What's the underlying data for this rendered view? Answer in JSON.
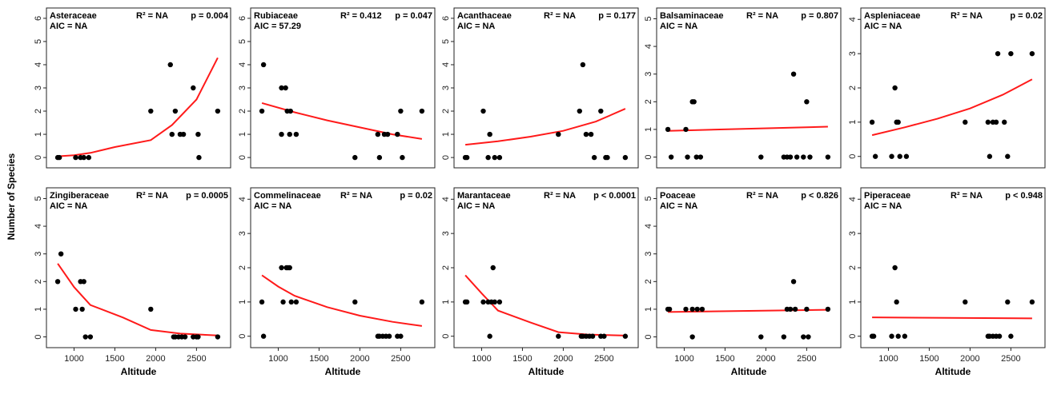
{
  "y_axis_label": "Number of Species",
  "chart_data": [
    {
      "type": "scatter",
      "family": "Asteraceae",
      "r2": "R² = NA",
      "p": "p = 0.004",
      "aic": "AIC = NA",
      "xlabel": "Altitude",
      "ylabel": "Number of Species",
      "xlim": [
        760,
        2820
      ],
      "ylim": [
        -0.1,
        6.1
      ],
      "yticks": [
        0,
        1,
        2,
        3,
        4,
        5,
        6
      ],
      "xticks": [],
      "points": [
        [
          800,
          0
        ],
        [
          820,
          0
        ],
        [
          1020,
          0
        ],
        [
          1080,
          0
        ],
        [
          1120,
          0
        ],
        [
          1180,
          0
        ],
        [
          1940,
          2
        ],
        [
          2180,
          4
        ],
        [
          2200,
          1
        ],
        [
          2240,
          2
        ],
        [
          2300,
          1
        ],
        [
          2340,
          1
        ],
        [
          2460,
          3
        ],
        [
          2520,
          1
        ],
        [
          2530,
          0
        ],
        [
          2760,
          2
        ]
      ],
      "fit": [
        [
          800,
          0.05
        ],
        [
          1000,
          0.1
        ],
        [
          1200,
          0.2
        ],
        [
          1500,
          0.45
        ],
        [
          1940,
          0.75
        ],
        [
          2200,
          1.4
        ],
        [
          2500,
          2.5
        ],
        [
          2760,
          4.3
        ]
      ]
    },
    {
      "type": "scatter",
      "family": "Rubiaceae",
      "r2": "R² = 0.412",
      "p": "p = 0.047",
      "aic": "AIC = 57.29",
      "xlabel": "Altitude",
      "ylabel": "Number of Species",
      "xlim": [
        760,
        2820
      ],
      "ylim": [
        -0.1,
        6.1
      ],
      "yticks": [
        0,
        1,
        2,
        3,
        4,
        5,
        6
      ],
      "xticks": [],
      "points": [
        [
          800,
          2
        ],
        [
          820,
          4
        ],
        [
          1040,
          3
        ],
        [
          1040,
          1
        ],
        [
          1090,
          3
        ],
        [
          1110,
          2
        ],
        [
          1150,
          2
        ],
        [
          1140,
          1
        ],
        [
          1220,
          1
        ],
        [
          1940,
          0
        ],
        [
          2220,
          1
        ],
        [
          2240,
          0
        ],
        [
          2300,
          1
        ],
        [
          2340,
          1
        ],
        [
          2460,
          1
        ],
        [
          2500,
          2
        ],
        [
          2520,
          0
        ],
        [
          2760,
          2
        ]
      ],
      "fit": [
        [
          800,
          2.35
        ],
        [
          1200,
          1.95
        ],
        [
          1600,
          1.6
        ],
        [
          2000,
          1.3
        ],
        [
          2400,
          1.0
        ],
        [
          2760,
          0.8
        ]
      ]
    },
    {
      "type": "scatter",
      "family": "Acanthaceae",
      "r2": "R² = NA",
      "p": "p = 0.177",
      "aic": "AIC = NA",
      "xlabel": "Altitude",
      "ylabel": "Number of Species",
      "xlim": [
        760,
        2820
      ],
      "ylim": [
        -0.1,
        6.1
      ],
      "yticks": [
        0,
        1,
        2,
        3,
        4,
        5,
        6
      ],
      "xticks": [],
      "points": [
        [
          800,
          0
        ],
        [
          820,
          0
        ],
        [
          1020,
          2
        ],
        [
          1080,
          0
        ],
        [
          1100,
          1
        ],
        [
          1160,
          0
        ],
        [
          1220,
          0
        ],
        [
          1940,
          1
        ],
        [
          2200,
          2
        ],
        [
          2240,
          4
        ],
        [
          2280,
          1
        ],
        [
          2340,
          1
        ],
        [
          2380,
          0
        ],
        [
          2460,
          2
        ],
        [
          2520,
          0
        ],
        [
          2540,
          0
        ],
        [
          2760,
          0
        ]
      ],
      "fit": [
        [
          800,
          0.55
        ],
        [
          1200,
          0.7
        ],
        [
          1600,
          0.9
        ],
        [
          2000,
          1.15
        ],
        [
          2400,
          1.55
        ],
        [
          2760,
          2.1
        ]
      ]
    },
    {
      "type": "scatter",
      "family": "Balsaminaceae",
      "r2": "R² = NA",
      "p": "p = 0.807",
      "aic": "AIC = NA",
      "xlabel": "Altitude",
      "ylabel": "Number of Species",
      "xlim": [
        760,
        2820
      ],
      "ylim": [
        -0.1,
        5.1
      ],
      "yticks": [
        0,
        1,
        2,
        3,
        4,
        5
      ],
      "xticks": [],
      "points": [
        [
          800,
          1
        ],
        [
          840,
          0
        ],
        [
          1020,
          1
        ],
        [
          1040,
          0
        ],
        [
          1100,
          2
        ],
        [
          1120,
          2
        ],
        [
          1150,
          0
        ],
        [
          1200,
          0
        ],
        [
          1940,
          0
        ],
        [
          2220,
          0
        ],
        [
          2260,
          0
        ],
        [
          2300,
          0
        ],
        [
          2340,
          3
        ],
        [
          2380,
          0
        ],
        [
          2460,
          0
        ],
        [
          2500,
          2
        ],
        [
          2540,
          0
        ],
        [
          2760,
          0
        ]
      ],
      "fit": [
        [
          800,
          0.95
        ],
        [
          2760,
          1.1
        ]
      ]
    },
    {
      "type": "scatter",
      "family": "Aspleniaceae",
      "r2": "R² = NA",
      "p": "p = 0.02",
      "aic": "AIC = NA",
      "xlabel": "Altitude",
      "ylabel": "Number of Species",
      "xlim": [
        760,
        2820
      ],
      "ylim": [
        -0.1,
        4.1
      ],
      "yticks": [
        0,
        1,
        2,
        3,
        4
      ],
      "xticks": [],
      "points": [
        [
          800,
          1
        ],
        [
          840,
          0
        ],
        [
          1040,
          0
        ],
        [
          1080,
          2
        ],
        [
          1100,
          1
        ],
        [
          1120,
          1
        ],
        [
          1140,
          0
        ],
        [
          1220,
          0
        ],
        [
          1940,
          1
        ],
        [
          2220,
          1
        ],
        [
          2240,
          0
        ],
        [
          2280,
          1
        ],
        [
          2320,
          1
        ],
        [
          2340,
          3
        ],
        [
          2420,
          1
        ],
        [
          2460,
          0
        ],
        [
          2500,
          3
        ],
        [
          2760,
          3
        ]
      ],
      "fit": [
        [
          800,
          0.62
        ],
        [
          1200,
          0.85
        ],
        [
          1600,
          1.1
        ],
        [
          2000,
          1.4
        ],
        [
          2400,
          1.8
        ],
        [
          2760,
          2.25
        ]
      ]
    },
    {
      "type": "scatter",
      "family": "Zingiberaceae",
      "r2": "R² = NA",
      "p": "p = 0.0005",
      "aic": "AIC = NA",
      "xlabel": "Altitude",
      "ylabel": "Number of Species",
      "xlim": [
        760,
        2820
      ],
      "ylim": [
        -0.1,
        5.1
      ],
      "yticks": [
        0,
        1,
        2,
        3,
        4,
        5
      ],
      "xticks": [
        1000,
        1500,
        2000,
        2500
      ],
      "points": [
        [
          800,
          2
        ],
        [
          840,
          3
        ],
        [
          1020,
          1
        ],
        [
          1080,
          2
        ],
        [
          1100,
          1
        ],
        [
          1120,
          2
        ],
        [
          1140,
          0
        ],
        [
          1200,
          0
        ],
        [
          1940,
          1
        ],
        [
          2220,
          0
        ],
        [
          2240,
          0
        ],
        [
          2280,
          0
        ],
        [
          2320,
          0
        ],
        [
          2360,
          0
        ],
        [
          2460,
          0
        ],
        [
          2500,
          0
        ],
        [
          2520,
          0
        ],
        [
          2760,
          0
        ]
      ],
      "fit": [
        [
          800,
          2.65
        ],
        [
          1000,
          1.8
        ],
        [
          1200,
          1.15
        ],
        [
          1600,
          0.7
        ],
        [
          1940,
          0.25
        ],
        [
          2300,
          0.12
        ],
        [
          2760,
          0.05
        ]
      ]
    },
    {
      "type": "scatter",
      "family": "Commelinaceae",
      "r2": "R² = NA",
      "p": "p = 0.02",
      "aic": "AIC = NA",
      "xlabel": "Altitude",
      "ylabel": "Number of Species",
      "xlim": [
        760,
        2820
      ],
      "ylim": [
        -0.1,
        4.1
      ],
      "yticks": [
        0,
        1,
        2,
        3,
        4
      ],
      "xticks": [
        1000,
        1500,
        2000,
        2500
      ],
      "points": [
        [
          800,
          1
        ],
        [
          820,
          0
        ],
        [
          1040,
          2
        ],
        [
          1060,
          1
        ],
        [
          1100,
          2
        ],
        [
          1120,
          2
        ],
        [
          1140,
          2
        ],
        [
          1160,
          1
        ],
        [
          1220,
          1
        ],
        [
          1940,
          1
        ],
        [
          2220,
          0
        ],
        [
          2240,
          0
        ],
        [
          2280,
          0
        ],
        [
          2320,
          0
        ],
        [
          2360,
          0
        ],
        [
          2460,
          0
        ],
        [
          2500,
          0
        ],
        [
          2760,
          1
        ]
      ],
      "fit": [
        [
          800,
          1.78
        ],
        [
          1000,
          1.45
        ],
        [
          1200,
          1.18
        ],
        [
          1600,
          0.85
        ],
        [
          2000,
          0.6
        ],
        [
          2400,
          0.42
        ],
        [
          2760,
          0.3
        ]
      ]
    },
    {
      "type": "scatter",
      "family": "Marantaceae",
      "r2": "R² = NA",
      "p": "p < 0.0001",
      "aic": "AIC = NA",
      "xlabel": "Altitude",
      "ylabel": "Number of Species",
      "xlim": [
        760,
        2820
      ],
      "ylim": [
        -0.1,
        4.1
      ],
      "yticks": [
        0,
        1,
        2,
        3,
        4
      ],
      "xticks": [
        1000,
        1500,
        2000,
        2500
      ],
      "points": [
        [
          800,
          1
        ],
        [
          820,
          1
        ],
        [
          1020,
          1
        ],
        [
          1080,
          1
        ],
        [
          1100,
          0
        ],
        [
          1120,
          1
        ],
        [
          1140,
          2
        ],
        [
          1160,
          1
        ],
        [
          1220,
          1
        ],
        [
          1940,
          0
        ],
        [
          2220,
          0
        ],
        [
          2240,
          0
        ],
        [
          2280,
          0
        ],
        [
          2320,
          0
        ],
        [
          2360,
          0
        ],
        [
          2460,
          0
        ],
        [
          2500,
          0
        ],
        [
          2760,
          0
        ]
      ],
      "fit": [
        [
          800,
          1.78
        ],
        [
          1000,
          1.25
        ],
        [
          1200,
          0.75
        ],
        [
          1600,
          0.4
        ],
        [
          1940,
          0.12
        ],
        [
          2300,
          0.05
        ],
        [
          2760,
          0.02
        ]
      ]
    },
    {
      "type": "scatter",
      "family": "Poaceae",
      "r2": "R² = NA",
      "p": "p < 0.826",
      "aic": "AIC = NA",
      "xlabel": "Altitude",
      "ylabel": "Number of Species",
      "xlim": [
        760,
        2820
      ],
      "ylim": [
        -0.1,
        5.1
      ],
      "yticks": [
        0,
        1,
        2,
        3,
        4,
        5
      ],
      "xticks": [
        1000,
        1500,
        2000,
        2500
      ],
      "points": [
        [
          800,
          1
        ],
        [
          820,
          1
        ],
        [
          1020,
          1
        ],
        [
          1100,
          1
        ],
        [
          1100,
          0
        ],
        [
          1160,
          1
        ],
        [
          1220,
          1
        ],
        [
          1940,
          0
        ],
        [
          2220,
          0
        ],
        [
          2260,
          1
        ],
        [
          2300,
          1
        ],
        [
          2340,
          2
        ],
        [
          2360,
          1
        ],
        [
          2460,
          0
        ],
        [
          2500,
          1
        ],
        [
          2520,
          0
        ],
        [
          2760,
          1
        ]
      ],
      "fit": [
        [
          800,
          0.9
        ],
        [
          2760,
          0.98
        ]
      ]
    },
    {
      "type": "scatter",
      "family": "Piperaceae",
      "r2": "R² = NA",
      "p": "p < 0.948",
      "aic": "AIC = NA",
      "xlabel": "Altitude",
      "ylabel": "Number of Species",
      "xlim": [
        760,
        2820
      ],
      "ylim": [
        -0.1,
        4.1
      ],
      "yticks": [
        0,
        1,
        2,
        3,
        4
      ],
      "xticks": [
        1000,
        1500,
        2000,
        2500
      ],
      "points": [
        [
          800,
          0
        ],
        [
          820,
          0
        ],
        [
          1040,
          0
        ],
        [
          1080,
          2
        ],
        [
          1100,
          1
        ],
        [
          1120,
          0
        ],
        [
          1200,
          0
        ],
        [
          1940,
          1
        ],
        [
          2220,
          0
        ],
        [
          2240,
          0
        ],
        [
          2280,
          0
        ],
        [
          2320,
          0
        ],
        [
          2360,
          0
        ],
        [
          2460,
          1
        ],
        [
          2500,
          0
        ],
        [
          2760,
          1
        ]
      ],
      "fit": [
        [
          800,
          0.55
        ],
        [
          2760,
          0.52
        ]
      ]
    }
  ]
}
